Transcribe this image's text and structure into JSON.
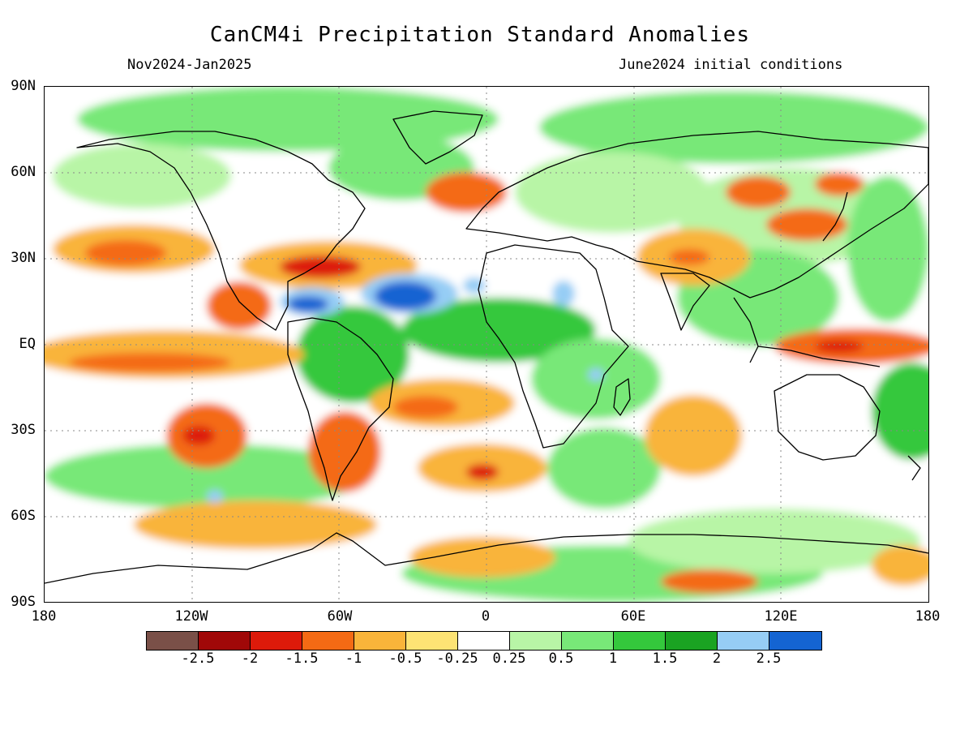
{
  "header": {
    "title": "CanCM4i Precipitation Standard Anomalies",
    "period": "Nov2024-Jan2025",
    "init": "June2024 initial conditions"
  },
  "axes": {
    "lat_labels": [
      "90N",
      "60N",
      "30N",
      "EQ",
      "30S",
      "60S",
      "90S"
    ],
    "lon_labels": [
      "180",
      "120W",
      "60W",
      "0",
      "60E",
      "120E",
      "180"
    ]
  },
  "colorbar": {
    "colors": [
      "#7a5048",
      "#a00808",
      "#dd1a0a",
      "#f46a14",
      "#f9b43a",
      "#fde374",
      "#ffffff",
      "#b8f5a6",
      "#78e878",
      "#34c83c",
      "#1aa322",
      "#96cdf5",
      "#1464d2"
    ],
    "ticks": [
      "-2.5",
      "-2",
      "-1.5",
      "-1",
      "-0.5",
      "-0.25",
      "0.25",
      "0.5",
      "1",
      "1.5",
      "2",
      "2.5"
    ]
  }
}
